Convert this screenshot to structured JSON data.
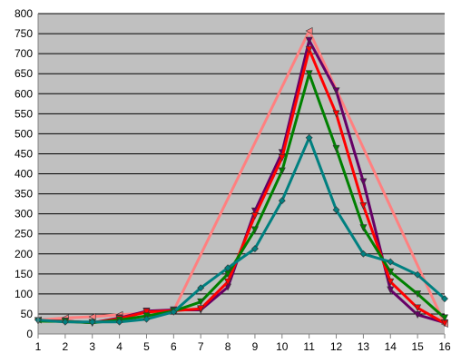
{
  "chart_data": {
    "type": "line",
    "title": "",
    "xlabel": "",
    "ylabel": "",
    "categories": [
      "1",
      "2",
      "3",
      "4",
      "5",
      "6",
      "7",
      "8",
      "9",
      "10",
      "11",
      "12",
      "13",
      "14",
      "15",
      "16"
    ],
    "ylim": [
      0,
      800
    ],
    "yticks": [
      "0",
      "50",
      "100",
      "150",
      "200",
      "250",
      "300",
      "350",
      "400",
      "450",
      "500",
      "550",
      "600",
      "650",
      "700",
      "750",
      "800"
    ],
    "grid": true,
    "plot_background": "#c0c0c0",
    "gridline_color": "#000000",
    "legend": "none",
    "series": [
      {
        "color": "#ff8080",
        "marker": "triangle-left",
        "values": [
          35,
          40,
          43,
          48,
          52,
          58,
          null,
          null,
          null,
          null,
          757,
          null,
          null,
          null,
          null,
          25
        ]
      },
      {
        "color": "#660066",
        "marker": "triangle-down",
        "values": [
          33,
          32,
          28,
          40,
          57,
          60,
          60,
          117,
          307,
          453,
          733,
          607,
          380,
          110,
          48,
          28
        ]
      },
      {
        "color": "#ff0000",
        "marker": "triangle-down",
        "values": [
          33,
          32,
          28,
          38,
          55,
          58,
          63,
          130,
          295,
          440,
          710,
          550,
          320,
          130,
          65,
          27
        ]
      },
      {
        "color": "#008000",
        "marker": "triangle-down",
        "values": [
          32,
          31,
          28,
          35,
          45,
          57,
          80,
          150,
          260,
          407,
          650,
          463,
          265,
          155,
          100,
          40
        ]
      },
      {
        "color": "#008080",
        "marker": "diamond",
        "values": [
          35,
          30,
          30,
          30,
          37,
          55,
          115,
          165,
          213,
          333,
          490,
          310,
          200,
          180,
          148,
          88
        ]
      }
    ]
  }
}
